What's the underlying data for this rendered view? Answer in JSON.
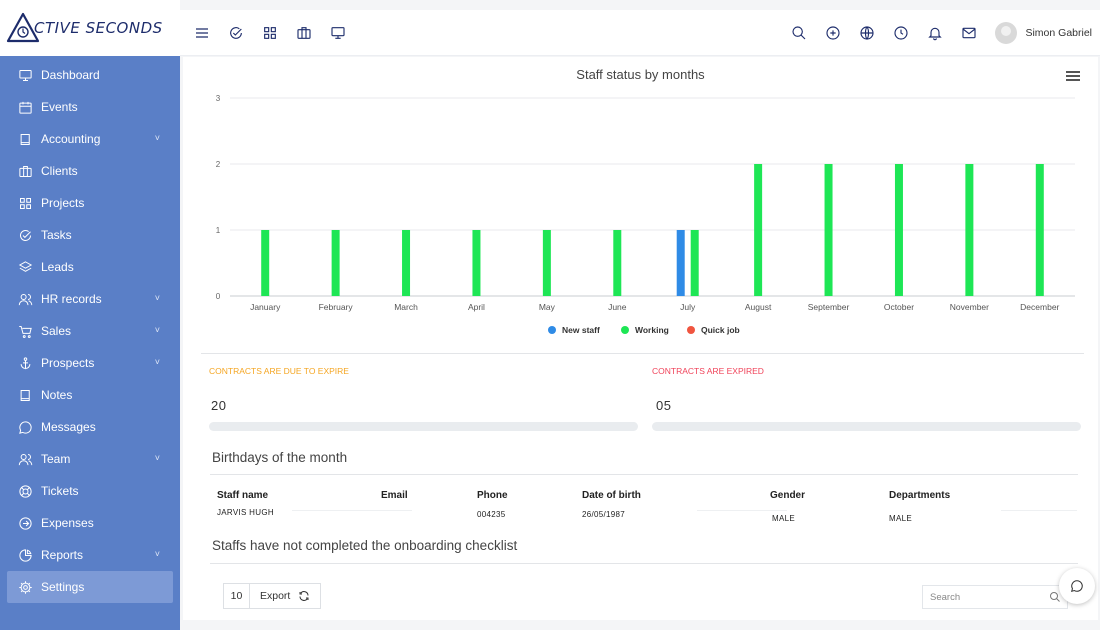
{
  "app": {
    "logo_text": "CTIVE SECONDS",
    "brand_color": "#1d2c6b",
    "sidebar_color": "#5a7fc7"
  },
  "sidebar": {
    "items": [
      {
        "label": "Dashboard",
        "icon": "monitor-icon",
        "has_submenu": false
      },
      {
        "label": "Events",
        "icon": "calendar-icon",
        "has_submenu": false
      },
      {
        "label": "Accounting",
        "icon": "book-icon",
        "has_submenu": true
      },
      {
        "label": "Clients",
        "icon": "briefcase-icon",
        "has_submenu": false
      },
      {
        "label": "Projects",
        "icon": "grid-icon",
        "has_submenu": false
      },
      {
        "label": "Tasks",
        "icon": "check-circle-icon",
        "has_submenu": false
      },
      {
        "label": "Leads",
        "icon": "layers-icon",
        "has_submenu": false
      },
      {
        "label": "HR records",
        "icon": "users-icon",
        "has_submenu": true
      },
      {
        "label": "Sales",
        "icon": "cart-icon",
        "has_submenu": true
      },
      {
        "label": "Prospects",
        "icon": "anchor-icon",
        "has_submenu": true
      },
      {
        "label": "Notes",
        "icon": "book-icon",
        "has_submenu": false
      },
      {
        "label": "Messages",
        "icon": "chat-icon",
        "has_submenu": false
      },
      {
        "label": "Team",
        "icon": "users-icon",
        "has_submenu": true
      },
      {
        "label": "Tickets",
        "icon": "lifebuoy-icon",
        "has_submenu": false
      },
      {
        "label": "Expenses",
        "icon": "arrow-circle-icon",
        "has_submenu": false
      },
      {
        "label": "Reports",
        "icon": "pie-icon",
        "has_submenu": true
      },
      {
        "label": "Settings",
        "icon": "gear-icon",
        "has_submenu": false,
        "active": true
      }
    ]
  },
  "header": {
    "left_icons": [
      "menu-icon",
      "check-circle-icon",
      "grid-icon",
      "briefcase-icon",
      "monitor-icon"
    ],
    "right_icons": [
      "search-icon",
      "plus-circle-icon",
      "globe-icon",
      "clock-icon",
      "bell-icon",
      "mail-icon"
    ],
    "user_name": "Simon Gabriel"
  },
  "chart_data": {
    "type": "bar",
    "title": "Staff status by months",
    "categories": [
      "January",
      "February",
      "March",
      "April",
      "May",
      "June",
      "July",
      "August",
      "September",
      "October",
      "November",
      "December"
    ],
    "series": [
      {
        "name": "New staff",
        "color": "#2f8be6",
        "values": [
          0,
          0,
          0,
          0,
          0,
          0,
          1,
          0,
          0,
          0,
          0,
          0
        ]
      },
      {
        "name": "Working",
        "color": "#1ee655",
        "values": [
          1,
          1,
          1,
          1,
          1,
          1,
          1,
          2,
          2,
          2,
          2,
          2
        ]
      },
      {
        "name": "Quick job",
        "color": "#f0553f",
        "values": [
          0,
          0,
          0,
          0,
          0,
          0,
          0,
          0,
          0,
          0,
          0,
          0
        ]
      }
    ],
    "yticks": [
      0,
      1,
      2,
      3
    ],
    "ylim": [
      0,
      3
    ],
    "grid": true,
    "legend_position": "bottom"
  },
  "kpis": {
    "due": {
      "label": "CONTRACTS ARE DUE TO EXPIRE",
      "value": "20",
      "color": "#f5a623"
    },
    "expired": {
      "label": "CONTRACTS ARE EXPIRED",
      "value": "05",
      "color": "#f0435a"
    }
  },
  "birthdays": {
    "title": "Birthdays of the month",
    "columns": [
      "Staff name",
      "Email",
      "Phone",
      "Date of birth",
      "Gender",
      "Departments"
    ],
    "rows": [
      {
        "name": "JARVIS HUGH",
        "email": "",
        "phone": "004235",
        "dob": "26/05/1987",
        "gender": "MALE",
        "department": "MALE"
      }
    ]
  },
  "onboarding": {
    "title": "Staffs have not completed the onboarding checklist",
    "page_length": "10",
    "export_label": "Export",
    "search_placeholder": "Search"
  }
}
